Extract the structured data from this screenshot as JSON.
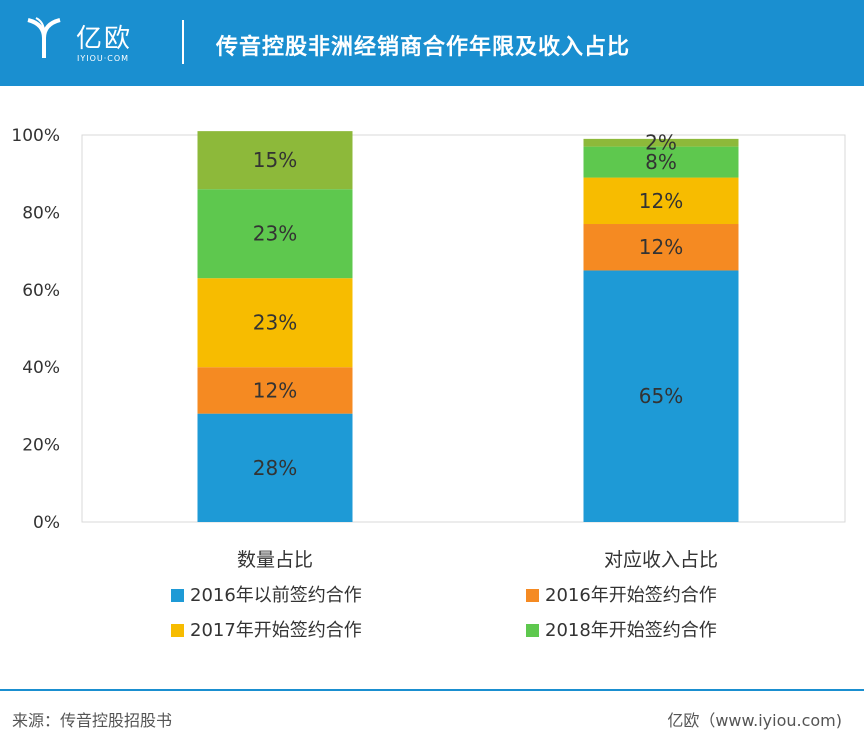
{
  "header": {
    "logo_text": "亿欧",
    "logo_sub": "IYIOU·COM",
    "title": "传音控股非洲经销商合作年限及收入占比"
  },
  "colors": {
    "header_bg": "#1a8fd0",
    "series": [
      "#1e9ad6",
      "#f58a22",
      "#f7bc00",
      "#5ec84e",
      "#8db93a"
    ]
  },
  "chart_data": {
    "type": "bar",
    "stacked": true,
    "categories": [
      "数量占比",
      "对应收入占比"
    ],
    "series": [
      {
        "name": "2016年以前签约合作",
        "values": [
          28,
          65
        ]
      },
      {
        "name": "2016年开始签约合作",
        "values": [
          12,
          12
        ]
      },
      {
        "name": "2017年开始签约合作",
        "values": [
          23,
          12
        ]
      },
      {
        "name": "2018年开始签约合作",
        "values": [
          23,
          8
        ]
      },
      {
        "name": "",
        "values": [
          15,
          2
        ]
      }
    ],
    "segment_labels": [
      [
        "28%",
        "12%",
        "23%",
        "23%",
        "15%"
      ],
      [
        "65%",
        "12%",
        "12%",
        "8%",
        "2%"
      ]
    ],
    "y_ticks": [
      "0%",
      "20%",
      "40%",
      "60%",
      "80%",
      "100%"
    ],
    "ylim": [
      0,
      100
    ]
  },
  "legend": [
    {
      "label": "2016年以前签约合作",
      "color": "#1e9ad6"
    },
    {
      "label": "2016年开始签约合作",
      "color": "#f58a22"
    },
    {
      "label": "2017年开始签约合作",
      "color": "#f7bc00"
    },
    {
      "label": "2018年开始签约合作",
      "color": "#5ec84e"
    }
  ],
  "footer": {
    "source": "来源：传音控股招股书",
    "brand": "亿欧（www.iyiou.com)"
  }
}
